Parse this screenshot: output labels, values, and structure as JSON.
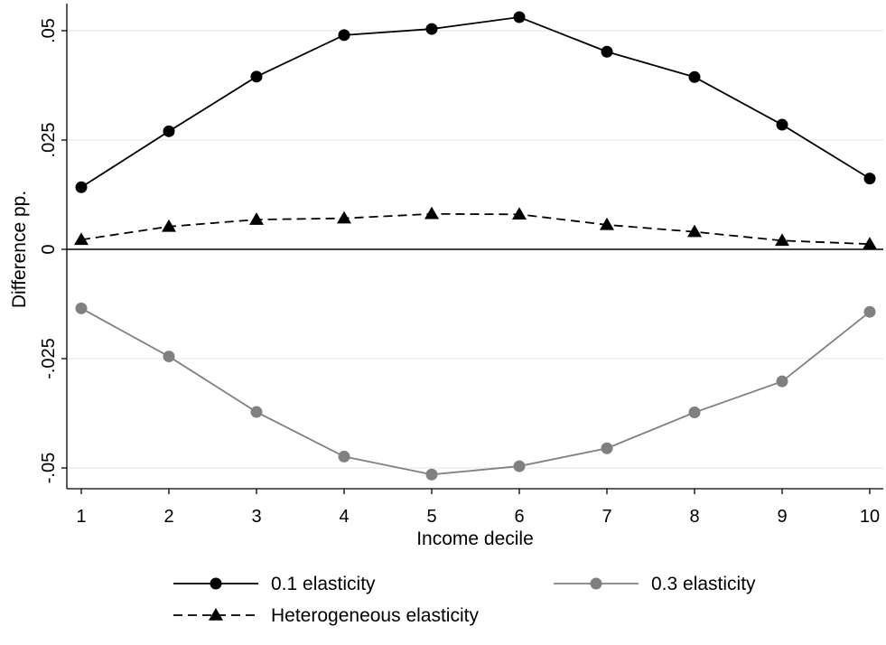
{
  "chart_data": {
    "type": "line",
    "xlabel": "Income decile",
    "ylabel": "Difference pp.",
    "x": [
      1,
      2,
      3,
      4,
      5,
      6,
      7,
      8,
      9,
      10
    ],
    "x_ticks": [
      "1",
      "2",
      "3",
      "4",
      "5",
      "6",
      "7",
      "8",
      "9",
      "10"
    ],
    "y_ticks": [
      {
        "value": 0.05,
        "label": ".05"
      },
      {
        "value": 0.025,
        "label": ".025"
      },
      {
        "value": 0,
        "label": "0"
      },
      {
        "value": -0.025,
        "label": "-.025"
      },
      {
        "value": -0.05,
        "label": "-.05"
      }
    ],
    "xlim": [
      1,
      10
    ],
    "ylim": [
      -0.055,
      0.054
    ],
    "grid": true,
    "reference_line": 0,
    "legend_position": "bottom",
    "series": [
      {
        "name": "0.1 elasticity",
        "color": "#000000",
        "marker": "circle",
        "line_style": "solid",
        "values": [
          0.0142,
          0.027,
          0.0395,
          0.049,
          0.0504,
          0.0531,
          0.0452,
          0.0394,
          0.0285,
          0.0162
        ]
      },
      {
        "name": "0.3 elasticity",
        "color": "#808080",
        "marker": "circle",
        "line_style": "solid",
        "values": [
          -0.0135,
          -0.0245,
          -0.0372,
          -0.0474,
          -0.0515,
          -0.0496,
          -0.0455,
          -0.0373,
          -0.0302,
          -0.0143
        ]
      },
      {
        "name": "Heterogeneous elasticity",
        "color": "#000000",
        "marker": "triangle",
        "line_style": "dashed",
        "values": [
          0.0022,
          0.0052,
          0.0068,
          0.0071,
          0.0081,
          0.008,
          0.0056,
          0.004,
          0.002,
          0.0012
        ]
      }
    ]
  }
}
